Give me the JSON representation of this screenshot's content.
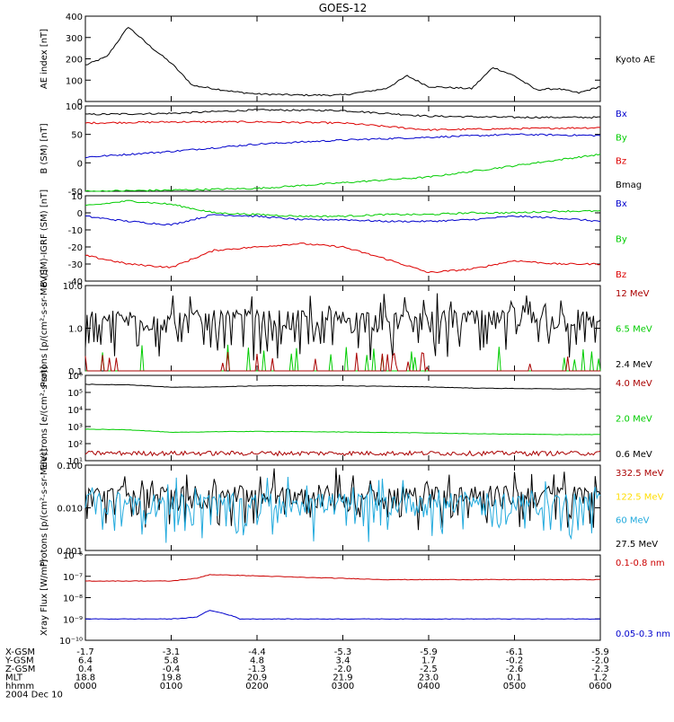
{
  "title": "GOES-12",
  "date_label": "2004 Dec 10",
  "footer": {
    "rows": [
      {
        "label": "X-GSM",
        "values": [
          "-1.7",
          "-3.1",
          "-4.4",
          "-5.3",
          "-5.9",
          "-6.1",
          "-5.9"
        ]
      },
      {
        "label": "Y-GSM",
        "values": [
          "6.4",
          "5.8",
          "4.8",
          "3.4",
          "1.7",
          "-0.2",
          "-2.0"
        ]
      },
      {
        "label": "Z-GSM",
        "values": [
          "0.4",
          "-0.4",
          "-1.3",
          "-2.0",
          "-2.5",
          "-2.6",
          "-2.3"
        ]
      },
      {
        "label": "MLT",
        "values": [
          "18.8",
          "19.8",
          "20.9",
          "21.9",
          "23.0",
          "0.1",
          "1.2"
        ]
      },
      {
        "label": "hhmm",
        "values": [
          "0000",
          "0100",
          "0200",
          "0300",
          "0400",
          "0500",
          "0600"
        ]
      }
    ]
  },
  "chart_data": [
    {
      "type": "line",
      "ylabel": "AE index [nT]",
      "yscale": "linear",
      "ylim": [
        0,
        400
      ],
      "yticks": [
        "0",
        "100",
        "200",
        "300",
        "400"
      ],
      "x_hours": [
        0,
        0.25,
        0.5,
        0.75,
        1.0,
        1.25,
        1.5,
        1.75,
        2.0,
        2.5,
        3.0,
        3.5,
        3.75,
        4.0,
        4.5,
        4.75,
        5.0,
        5.25,
        5.5,
        5.75,
        6.0
      ],
      "series": [
        {
          "name": "Kyoto AE",
          "color": "#000000",
          "values": [
            170,
            210,
            350,
            260,
            180,
            75,
            60,
            45,
            35,
            30,
            30,
            60,
            120,
            70,
            60,
            160,
            120,
            55,
            60,
            40,
            70
          ]
        }
      ],
      "legend": [
        {
          "text": "Kyoto AE",
          "color": "#000000"
        }
      ]
    },
    {
      "type": "line",
      "ylabel": "B (SM) [nT]",
      "yscale": "linear",
      "ylim": [
        -50,
        100
      ],
      "yticks": [
        "-50",
        "0",
        "50",
        "100"
      ],
      "x_hours": [
        0,
        1,
        2,
        3,
        4,
        5,
        6
      ],
      "series": [
        {
          "name": "Bmag",
          "color": "#000000",
          "values": [
            85,
            87,
            93,
            92,
            82,
            80,
            80
          ]
        },
        {
          "name": "Bz",
          "color": "#dd0000",
          "values": [
            70,
            72,
            72,
            70,
            58,
            60,
            62
          ]
        },
        {
          "name": "Bx",
          "color": "#0000cc",
          "values": [
            10,
            20,
            33,
            40,
            45,
            50,
            48
          ]
        },
        {
          "name": "By",
          "color": "#00cc00",
          "values": [
            -50,
            -48,
            -45,
            -35,
            -25,
            -5,
            15
          ]
        }
      ],
      "legend": [
        {
          "text": "Bx",
          "color": "#0000cc"
        },
        {
          "text": "By",
          "color": "#00cc00"
        },
        {
          "text": "Bz",
          "color": "#dd0000"
        },
        {
          "text": "Bmag",
          "color": "#000000"
        }
      ]
    },
    {
      "type": "line",
      "ylabel": "B (SM)-IGRF (SM) [nT]",
      "yscale": "linear",
      "ylim": [
        -40,
        10
      ],
      "yticks": [
        "-40",
        "-30",
        "-20",
        "-10",
        "0",
        "10"
      ],
      "x_hours": [
        0,
        0.5,
        1.0,
        1.5,
        2.0,
        2.5,
        3.0,
        3.5,
        4.0,
        4.5,
        5.0,
        5.5,
        6.0
      ],
      "series": [
        {
          "name": "Bx",
          "color": "#0000cc",
          "values": [
            -2,
            -5,
            -7,
            -1,
            -2,
            -4,
            -4,
            -5,
            -5,
            -4,
            -2,
            -3,
            -5
          ]
        },
        {
          "name": "By",
          "color": "#00cc00",
          "values": [
            4,
            7,
            5,
            0,
            -1,
            -2,
            -2,
            -1,
            -1,
            0,
            0,
            1,
            1
          ]
        },
        {
          "name": "Bz",
          "color": "#dd0000",
          "values": [
            -25,
            -30,
            -32,
            -22,
            -20,
            -18,
            -20,
            -27,
            -35,
            -33,
            -28,
            -30,
            -30
          ]
        }
      ],
      "legend": [
        {
          "text": "Bx",
          "color": "#0000cc"
        },
        {
          "text": "By",
          "color": "#00cc00"
        },
        {
          "text": "Bz",
          "color": "#dd0000"
        }
      ]
    },
    {
      "type": "line",
      "ylabel": "Protons [p/(cm²-s-sr-MeV)]",
      "yscale": "log",
      "ylim": [
        0.1,
        10
      ],
      "yticks": [
        "0.1",
        "1.0",
        "10.0"
      ],
      "series": [
        {
          "name": "2.4 MeV",
          "color": "#000000",
          "noise": "spiky",
          "base": 1.2,
          "low": 0.35,
          "high": 3.0
        },
        {
          "name": "6.5 MeV",
          "color": "#00cc00",
          "noise": "sparse",
          "base": 0.1,
          "high": 0.3
        },
        {
          "name": "12 MeV",
          "color": "#aa0000",
          "noise": "sparse",
          "base": 0.1,
          "high": 0.2
        }
      ],
      "legend": [
        {
          "text": "12 MeV",
          "color": "#aa0000"
        },
        {
          "text": "6.5 MeV",
          "color": "#00cc00"
        },
        {
          "text": "2.4 MeV",
          "color": "#000000"
        }
      ]
    },
    {
      "type": "line",
      "ylabel": "Electrons [e/(cm²-s-sr)]",
      "yscale": "log",
      "ylim": [
        10,
        1000000
      ],
      "yticks": [
        "10¹",
        "10²",
        "10³",
        "10⁴",
        "10⁵",
        "10⁶"
      ],
      "x_hours": [
        0,
        0.5,
        1.0,
        1.5,
        2.0,
        2.5,
        3.0,
        3.5,
        4.0,
        4.5,
        5.0,
        5.5,
        6.0
      ],
      "series": [
        {
          "name": "0.6 MeV",
          "color": "#000000",
          "values": [
            300000,
            280000,
            200000,
            210000,
            240000,
            250000,
            240000,
            230000,
            210000,
            180000,
            170000,
            160000,
            160000
          ]
        },
        {
          "name": "2.0 MeV",
          "color": "#00cc00",
          "values": [
            700,
            650,
            450,
            500,
            520,
            500,
            480,
            450,
            420,
            380,
            360,
            340,
            340
          ]
        },
        {
          "name": "4.0 MeV",
          "color": "#aa0000",
          "noise": "band",
          "values": [
            28,
            28,
            27,
            27,
            27,
            27,
            27,
            27,
            27,
            27,
            27,
            27,
            27
          ]
        }
      ],
      "legend": [
        {
          "text": "4.0 MeV",
          "color": "#aa0000"
        },
        {
          "text": "2.0 MeV",
          "color": "#00cc00"
        },
        {
          "text": "0.6 MeV",
          "color": "#000000"
        }
      ]
    },
    {
      "type": "line",
      "ylabel": "Protons [p/(cm²-s-sr-MeV)]",
      "yscale": "log",
      "ylim": [
        0.001,
        0.1
      ],
      "yticks": [
        "0.001",
        "0.010",
        "0.100"
      ],
      "series": [
        {
          "name": "27.5 MeV",
          "color": "#000000",
          "noise": "spiky",
          "base": 0.015,
          "low": 0.006,
          "high": 0.04
        },
        {
          "name": "60 MeV",
          "color": "#22aadd",
          "noise": "spiky",
          "base": 0.01,
          "low": 0.003,
          "high": 0.025
        }
      ],
      "legend": [
        {
          "text": "332.5 MeV",
          "color": "#aa0000"
        },
        {
          "text": "122.5 MeV",
          "color": "#ffdd00"
        },
        {
          "text": "60 MeV",
          "color": "#22aadd"
        },
        {
          "text": "27.5 MeV",
          "color": "#000000"
        }
      ]
    },
    {
      "type": "line",
      "ylabel": "Xray Flux [W/m²]",
      "yscale": "log",
      "ylim": [
        1e-10,
        1e-06
      ],
      "yticks": [
        "10⁻¹⁰",
        "10⁻⁹",
        "10⁻⁸",
        "10⁻⁷",
        "10⁻⁶"
      ],
      "x_hours": [
        0,
        0.5,
        1.0,
        1.3,
        1.45,
        1.8,
        2.5,
        3.0,
        3.5,
        4.0,
        4.5,
        5.0,
        5.5,
        6.0
      ],
      "series": [
        {
          "name": "0.1-0.8 nm",
          "color": "#cc0000",
          "values": [
            6e-08,
            6e-08,
            6e-08,
            8e-08,
            1.2e-07,
            1.1e-07,
            9e-08,
            8e-08,
            7e-08,
            7e-08,
            7e-08,
            7e-08,
            7e-08,
            7e-08
          ]
        },
        {
          "name": "0.05-0.3 nm",
          "color": "#0000cc",
          "values": [
            1e-09,
            1e-09,
            1e-09,
            1.2e-09,
            2.5e-09,
            1e-09,
            1e-09,
            1e-09,
            1e-09,
            1e-09,
            1e-09,
            1e-09,
            1e-09,
            1e-09
          ]
        }
      ],
      "legend": [
        {
          "text": "0.1-0.8 nm",
          "color": "#cc0000"
        },
        {
          "text": "0.05-0.3 nm",
          "color": "#0000cc"
        }
      ]
    }
  ]
}
